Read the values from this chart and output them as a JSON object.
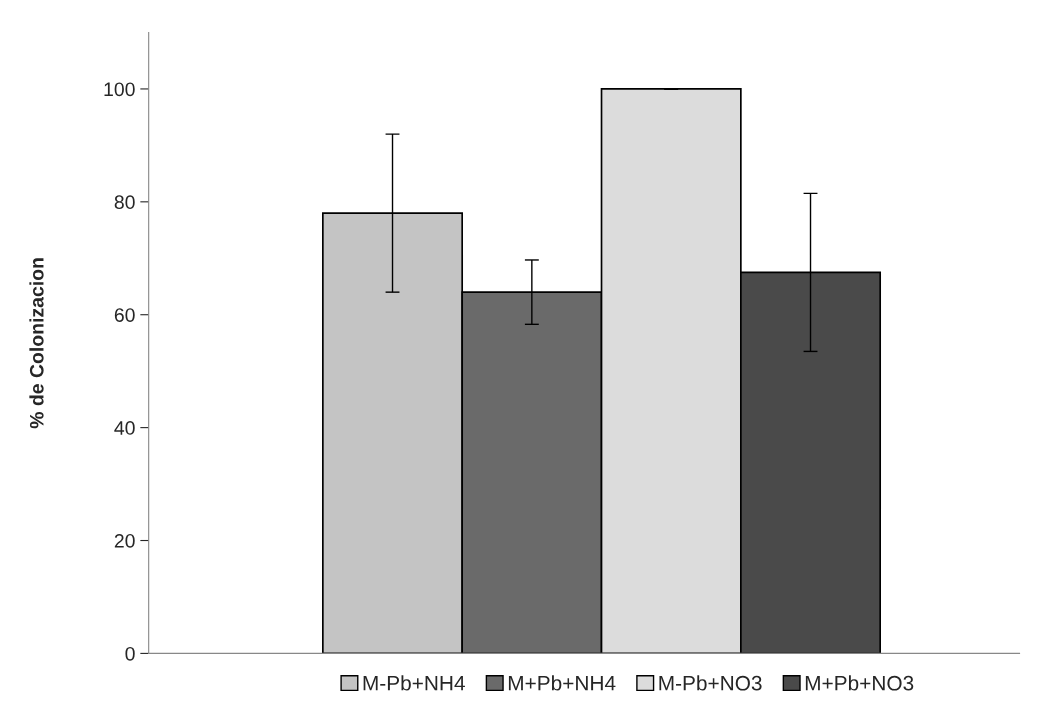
{
  "chart_data": {
    "type": "bar",
    "ylabel": "% de Colonizacion",
    "categories": [
      null
    ],
    "series": [
      {
        "name": "M-Pb+NH4",
        "color": "#c4c4c4",
        "values": [
          78
        ],
        "errors": [
          14
        ]
      },
      {
        "name": "M+Pb+NH4",
        "color": "#6a6a6a",
        "values": [
          64
        ],
        "errors": [
          5.7
        ]
      },
      {
        "name": "M-Pb+NO3",
        "color": "#dcdcdc",
        "values": [
          100
        ],
        "errors": [
          0
        ]
      },
      {
        "name": "M+Pb+NO3",
        "color": "#4a4a4a",
        "values": [
          67.5
        ],
        "errors": [
          14
        ]
      }
    ],
    "ylim": [
      0,
      110
    ],
    "yticks": [
      0,
      20,
      40,
      60,
      80,
      100
    ],
    "grid": false,
    "legend": "bottom"
  }
}
